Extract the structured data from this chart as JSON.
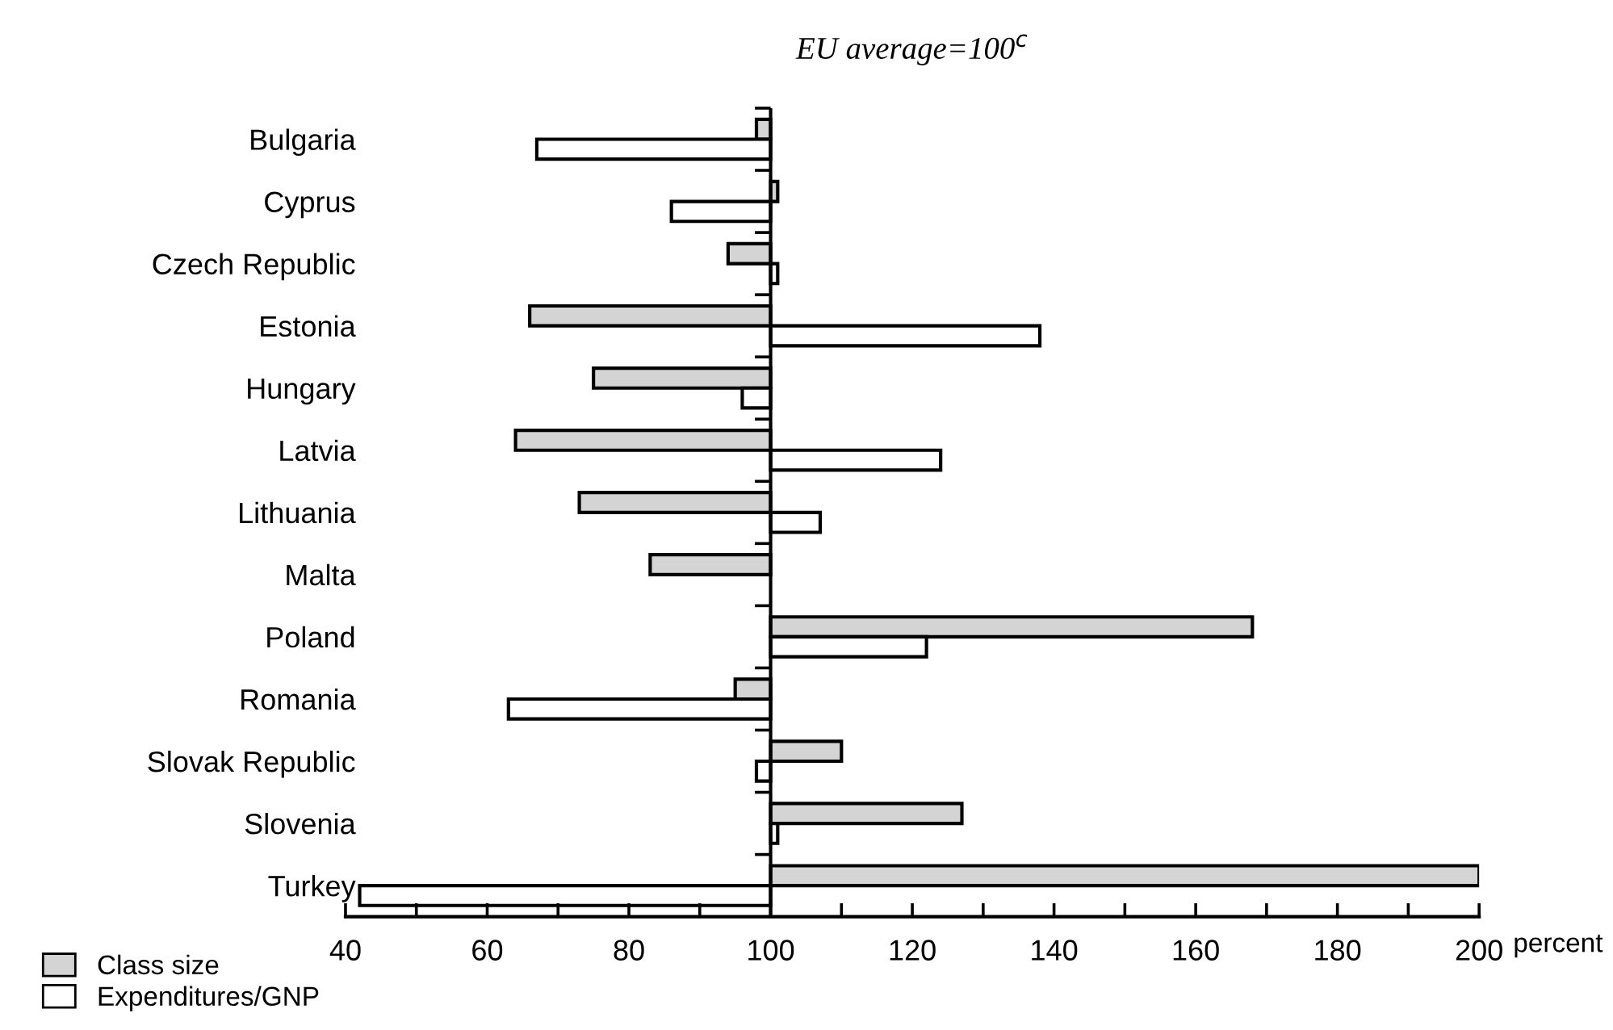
{
  "chart_data": {
    "type": "bar",
    "orientation": "horizontal",
    "title": "EU average=100$^{c}$",
    "xlabel": "percent",
    "categories": [
      "Bulgaria",
      "Cyprus",
      "Czech Republic",
      "Estonia",
      "Hungary",
      "Latvia",
      "Lithuania",
      "Malta",
      "Poland",
      "Romania",
      "Slovak Republic",
      "Slovenia",
      "Turkey"
    ],
    "series": [
      {
        "name": "Class size",
        "color": "#d4d4d4",
        "base": [
          100,
          100,
          100,
          100,
          100,
          100,
          100,
          100,
          100,
          100,
          100,
          100,
          100
        ],
        "values": [
          -2,
          1,
          -6,
          -34,
          -25,
          -36,
          -27,
          -17,
          68,
          -5,
          10,
          27,
          100
        ]
      },
      {
        "name": "Expenditures/GNP",
        "color": "#ffffff",
        "base": [
          100,
          100,
          100,
          100,
          100,
          100,
          100,
          null,
          100,
          100,
          100,
          100,
          100
        ],
        "values": [
          -33,
          -14,
          1,
          38,
          -4,
          24,
          7,
          null,
          22,
          -37,
          -2,
          1,
          -58
        ]
      }
    ],
    "xlim": [
      40,
      200
    ],
    "xticks": [
      40,
      {
        "value": 50,
        "label": null
      },
      60,
      {
        "value": 70,
        "label": null
      },
      80,
      {
        "value": 90,
        "label": null
      },
      100,
      {
        "value": 110,
        "label": null
      },
      120,
      {
        "value": 130,
        "label": null
      },
      140,
      {
        "value": 150,
        "label": null
      },
      160,
      {
        "value": 170,
        "label": null
      },
      180,
      {
        "value": 190,
        "label": null
      },
      200
    ],
    "ref_lines": [
      {
        "axis": "x",
        "value": 100,
        "color": "#000000"
      }
    ],
    "legend": "bottom left",
    "grid": false
  }
}
